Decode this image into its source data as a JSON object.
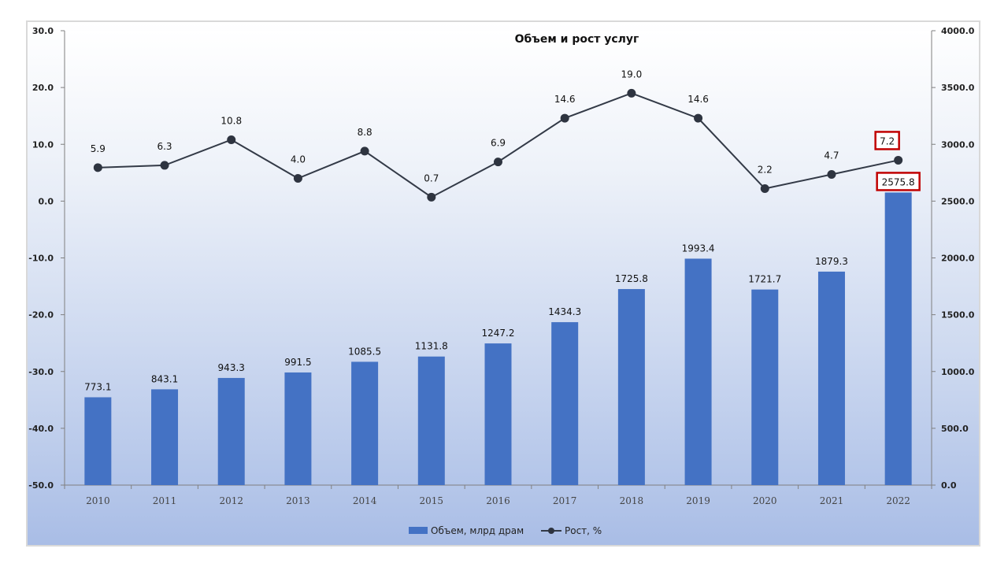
{
  "chart_data": {
    "type": "bar+line",
    "title": "Объем и рост услуг",
    "categories": [
      "2010",
      "2011",
      "2012",
      "2013",
      "2014",
      "2015",
      "2016",
      "2017",
      "2018",
      "2019",
      "2020",
      "2021",
      "2022"
    ],
    "series": [
      {
        "name": "Объем, млрд драм",
        "type": "bar",
        "axis": "right",
        "color": "#4472c4",
        "values": [
          773.1,
          843.1,
          943.3,
          991.5,
          1085.5,
          1131.8,
          1247.2,
          1434.3,
          1725.8,
          1993.4,
          1721.7,
          1879.3,
          2575.8
        ],
        "labels": [
          "773.1",
          "843.1",
          "943.3",
          "991.5",
          "1085.5",
          "1131.8",
          "1247.2",
          "1434.3",
          "1725.8",
          "1993.4",
          "1721.7",
          "1879.3",
          "2575.8"
        ]
      },
      {
        "name": "Рост, %",
        "type": "line",
        "axis": "left",
        "color": "#333a47",
        "values": [
          5.9,
          6.3,
          10.8,
          4.0,
          8.8,
          0.7,
          6.9,
          14.6,
          19.0,
          14.6,
          2.2,
          4.7,
          7.2
        ],
        "labels": [
          "5.9",
          "6.3",
          "10.8",
          "4.0",
          "8.8",
          "0.7",
          "6.9",
          "14.6",
          "19.0",
          "14.6",
          "2.2",
          "4.7",
          "7.2"
        ]
      }
    ],
    "left_axis": {
      "ylim": [
        -50,
        30
      ],
      "ticks": [
        "30.0",
        "20.0",
        "10.0",
        "0.0",
        "-10.0",
        "-20.0",
        "-30.0",
        "-40.0",
        "-50.0"
      ],
      "tick_values": [
        30,
        20,
        10,
        0,
        -10,
        -20,
        -30,
        -40,
        -50
      ]
    },
    "right_axis": {
      "ylim": [
        0,
        4000
      ],
      "ticks": [
        "4000.0",
        "3500.0",
        "3000.0",
        "2500.0",
        "2000.0",
        "1500.0",
        "1000.0",
        "500.0",
        "0.0"
      ],
      "tick_values": [
        4000,
        3500,
        3000,
        2500,
        2000,
        1500,
        1000,
        500,
        0
      ]
    },
    "highlight_index": 12,
    "highlight_color": "#c00000",
    "legend_position": "bottom",
    "grid": false
  }
}
